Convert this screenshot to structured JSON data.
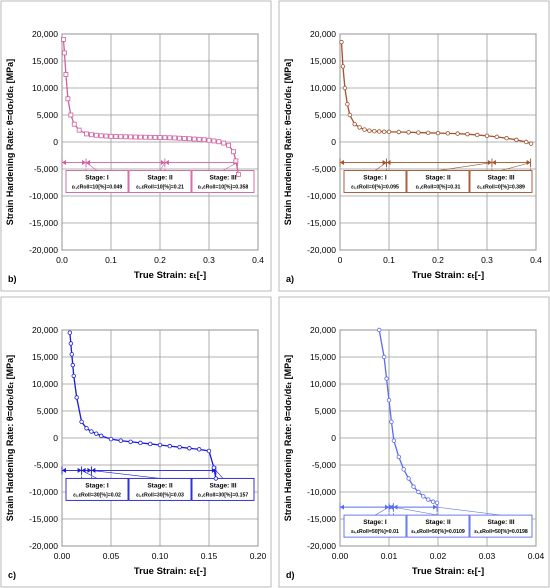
{
  "figure": {
    "frame_color": "#b8b8b8",
    "grid_color": "#9a9a9a"
  },
  "chart_data": [
    {
      "id": "panel-b",
      "panel_label": "b)",
      "type": "line",
      "color": "#d060a0",
      "marker": "square",
      "ylabel": "Strain Hardening Rate: θ=dσₜ/dεₜ [MPa]",
      "xlabel": "True Strain: εₜ[-]",
      "xlim": [
        0,
        0.4
      ],
      "ylim": [
        -20000,
        20000
      ],
      "xticks": [
        "0.0",
        "0.1",
        "0.2",
        "0.3",
        "0.4"
      ],
      "yticks": [
        "20,000",
        "15,000",
        "10,000",
        "5,000",
        "0",
        "-5,000",
        "-10,000",
        "-15,000",
        "-20,000"
      ],
      "x": [
        0.003,
        0.005,
        0.008,
        0.012,
        0.018,
        0.025,
        0.035,
        0.05,
        0.06,
        0.07,
        0.08,
        0.09,
        0.1,
        0.11,
        0.12,
        0.13,
        0.14,
        0.15,
        0.16,
        0.17,
        0.18,
        0.19,
        0.2,
        0.21,
        0.22,
        0.23,
        0.24,
        0.25,
        0.26,
        0.27,
        0.28,
        0.29,
        0.3,
        0.31,
        0.32,
        0.33,
        0.34,
        0.35,
        0.355,
        0.36
      ],
      "y": [
        19000,
        16500,
        12500,
        8000,
        5000,
        3300,
        2200,
        1500,
        1350,
        1250,
        1150,
        1100,
        1050,
        1000,
        980,
        960,
        940,
        920,
        900,
        890,
        870,
        850,
        820,
        800,
        780,
        750,
        700,
        650,
        600,
        550,
        500,
        420,
        330,
        200,
        50,
        -200,
        -600,
        -1800,
        -3500,
        -6000
      ],
      "stage_bounds": [
        0.0,
        0.049,
        0.21,
        0.358
      ],
      "boundary_level": -3800,
      "stages": [
        {
          "label": "Stage: I",
          "formula": "εₜ,εRoll=10[%]=0.049"
        },
        {
          "label": "Stage: II",
          "formula": "εₜ,εRoll=10[%]=0.21"
        },
        {
          "label": "Stage: III",
          "formula": "εₜ,εRoll=10[%]=0.358"
        }
      ]
    },
    {
      "id": "panel-a",
      "panel_label": "a)",
      "type": "line",
      "color": "#a0522d",
      "marker": "circle",
      "ylabel": "Strain Hardening Rate: θ=dσₜ/dεₜ [MPa]",
      "xlabel": "True Strain: εₜ[-]",
      "xlim": [
        0,
        0.4
      ],
      "ylim": [
        -20000,
        20000
      ],
      "xticks": [
        "0",
        "0.1",
        "0.2",
        "0.3",
        "0.4"
      ],
      "yticks": [
        "20,000",
        "15,000",
        "10,000",
        "5,000",
        "0",
        "-5,000",
        "-10,000",
        "-15,000",
        "-20,000"
      ],
      "x": [
        0.003,
        0.006,
        0.01,
        0.015,
        0.02,
        0.03,
        0.04,
        0.05,
        0.06,
        0.07,
        0.08,
        0.09,
        0.1,
        0.12,
        0.14,
        0.16,
        0.18,
        0.2,
        0.22,
        0.24,
        0.26,
        0.28,
        0.3,
        0.32,
        0.34,
        0.36,
        0.38,
        0.39
      ],
      "y": [
        18500,
        14000,
        10000,
        7000,
        5000,
        3300,
        2700,
        2300,
        2100,
        2000,
        1950,
        1900,
        1880,
        1850,
        1800,
        1750,
        1700,
        1650,
        1600,
        1550,
        1450,
        1300,
        1150,
        950,
        700,
        400,
        0,
        -300
      ],
      "stage_bounds": [
        0.0,
        0.095,
        0.31,
        0.389
      ],
      "boundary_level": -3800,
      "stages": [
        {
          "label": "Stage: I",
          "formula": "εₜ,εRoll=0[%]=0.095"
        },
        {
          "label": "Stage: II",
          "formula": "εₜ,εRoll=0[%]=0.31"
        },
        {
          "label": "Stage: III",
          "formula": "εₜ,εRoll=0[%]=0.389"
        }
      ]
    },
    {
      "id": "panel-c",
      "panel_label": "c)",
      "type": "line",
      "color": "#1a1adc",
      "marker": "circle",
      "ylabel": "Strain Hardening Rate: θ=dσₜ/dεₜ [MPa]",
      "xlabel": "True Strain: εₜ[-]",
      "xlim": [
        0,
        0.2
      ],
      "ylim": [
        -20000,
        20000
      ],
      "xticks": [
        "0.00",
        "0.05",
        "0.10",
        "0.15",
        "0.20"
      ],
      "yticks": [
        "20,000",
        "15,000",
        "10,000",
        "5,000",
        "0",
        "-5,000",
        "-10,000",
        "-15,000",
        "-20,000"
      ],
      "x": [
        0.008,
        0.009,
        0.01,
        0.011,
        0.012,
        0.015,
        0.02,
        0.025,
        0.03,
        0.035,
        0.04,
        0.05,
        0.06,
        0.07,
        0.08,
        0.09,
        0.1,
        0.11,
        0.12,
        0.13,
        0.14,
        0.15,
        0.155,
        0.157
      ],
      "y": [
        19500,
        17500,
        15500,
        13500,
        11500,
        7500,
        3000,
        1800,
        1200,
        800,
        400,
        -200,
        -500,
        -700,
        -900,
        -1100,
        -1300,
        -1500,
        -1700,
        -1900,
        -2100,
        -2400,
        -5500,
        -7500
      ],
      "stage_bounds": [
        0.0,
        0.02,
        0.03,
        0.157
      ],
      "boundary_level": -6000,
      "stages": [
        {
          "label": "Stage: I",
          "formula": "εₜ,εRoll=30[%]=0.02"
        },
        {
          "label": "Stage: II",
          "formula": "εₜ,εRoll=30[%]=0.03"
        },
        {
          "label": "Stage: III",
          "formula": "εₜ,εRoll=30[%]=0.157"
        }
      ]
    },
    {
      "id": "panel-d",
      "panel_label": "d)",
      "type": "line",
      "color": "#5a6cf0",
      "marker": "circle",
      "ylabel": "Strain Hardening Rate: θ=dσₜ/dεₜ [MPa]",
      "xlabel": "True Strain: εₜ[-]",
      "xlim": [
        0,
        0.04
      ],
      "ylim": [
        -20000,
        20000
      ],
      "xticks": [
        "0.00",
        "0.01",
        "0.02",
        "0.03",
        "0.04"
      ],
      "yticks": [
        "20,000",
        "15,000",
        "10,000",
        "5,000",
        "0",
        "-5,000",
        "-10,000",
        "-15,000",
        "-20,000"
      ],
      "x": [
        0.008,
        0.009,
        0.0095,
        0.01,
        0.0105,
        0.011,
        0.012,
        0.013,
        0.014,
        0.015,
        0.016,
        0.017,
        0.018,
        0.019,
        0.0198
      ],
      "y": [
        20000,
        15000,
        11000,
        7000,
        3000,
        -500,
        -3500,
        -5800,
        -7500,
        -9000,
        -10000,
        -10800,
        -11400,
        -11800,
        -12000
      ],
      "stage_bounds": [
        0.0,
        0.01,
        0.0109,
        0.0198
      ],
      "boundary_level": -12800,
      "stages": [
        {
          "label": "Stage: I",
          "formula": "εₜ,εRoll=50[%]=0.01"
        },
        {
          "label": "Stage: II",
          "formula": "εₜ,εRoll=50[%]=0.0109"
        },
        {
          "label": "Stage: III",
          "formula": "εₜ,εRoll=50[%]=0.0198"
        }
      ]
    }
  ]
}
